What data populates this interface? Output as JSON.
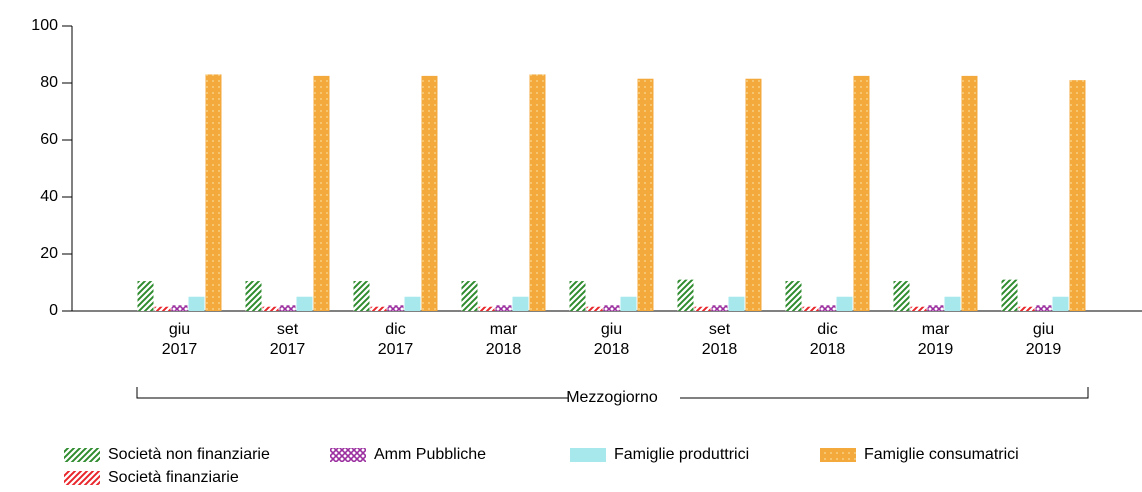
{
  "chart_data": {
    "type": "bar",
    "categories": [
      [
        "giu",
        "2017"
      ],
      [
        "set",
        "2017"
      ],
      [
        "dic",
        "2017"
      ],
      [
        "mar",
        "2018"
      ],
      [
        "giu",
        "2018"
      ],
      [
        "set",
        "2018"
      ],
      [
        "dic",
        "2018"
      ],
      [
        "mar",
        "2019"
      ],
      [
        "giu",
        "2019"
      ]
    ],
    "group_label": "Mezzogiorno",
    "series": [
      {
        "name": "Società non finanziarie",
        "color": "#2e8b2e",
        "pattern": "hatch",
        "values": [
          10.5,
          10.5,
          10.5,
          10.5,
          10.5,
          11,
          10.5,
          10.5,
          11
        ]
      },
      {
        "name": "Società finanziarie",
        "color": "#e8262b",
        "pattern": "hatch",
        "values": [
          1.5,
          1.5,
          1.5,
          1.5,
          1.5,
          1.5,
          1.5,
          1.5,
          1.5
        ]
      },
      {
        "name": "Amm Pubbliche",
        "color": "#9b2fa0",
        "pattern": "cross",
        "values": [
          2,
          2,
          2,
          2,
          2,
          2,
          2,
          2,
          2
        ]
      },
      {
        "name": "Famiglie produttrici",
        "color": "#a6e8ec",
        "pattern": "solid",
        "values": [
          5,
          5,
          5,
          5,
          5,
          5,
          5,
          5,
          5
        ]
      },
      {
        "name": "Famiglie consumatrici",
        "color": "#f4a93c",
        "pattern": "dots",
        "values": [
          83,
          82.5,
          82.5,
          83,
          81.5,
          81.5,
          82.5,
          82.5,
          81
        ]
      }
    ],
    "ylim": [
      0,
      100
    ],
    "yticks": [
      0,
      20,
      40,
      60,
      80,
      100
    ]
  }
}
